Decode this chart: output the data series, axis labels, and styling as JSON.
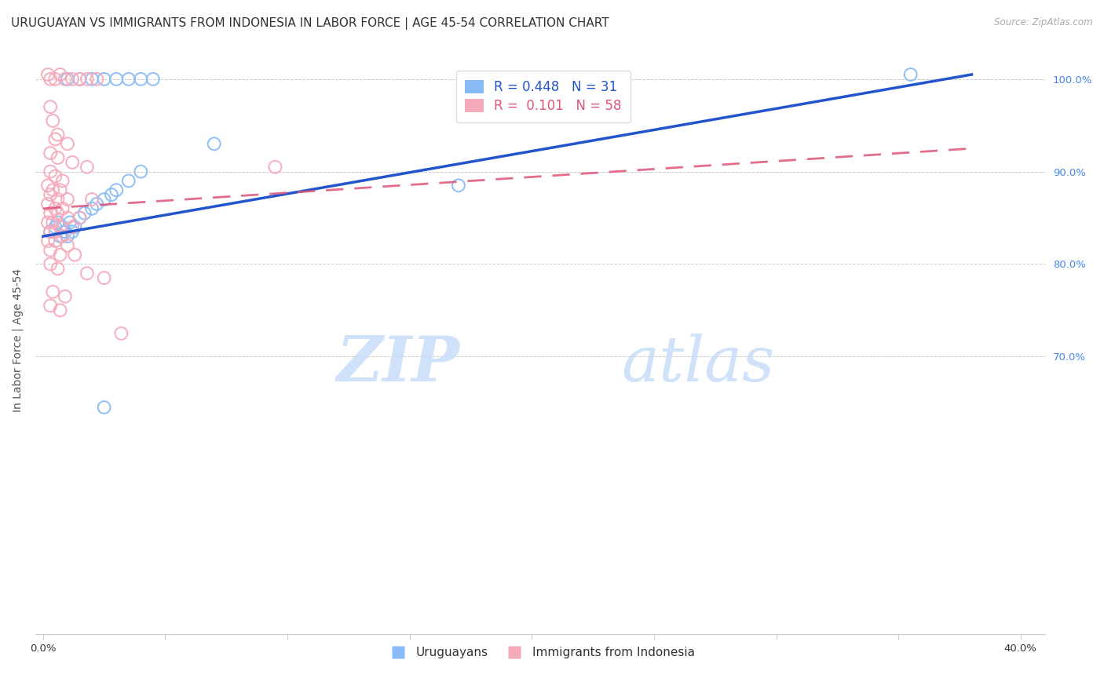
{
  "title": "URUGUAYAN VS IMMIGRANTS FROM INDONESIA IN LABOR FORCE | AGE 45-54 CORRELATION CHART",
  "source": "Source: ZipAtlas.com",
  "ylabel": "In Labor Force | Age 45-54",
  "x_tick_vals": [
    0.0,
    5.0,
    10.0,
    15.0,
    20.0,
    25.0,
    30.0,
    35.0,
    40.0
  ],
  "y_tick_vals": [
    70.0,
    80.0,
    90.0,
    100.0
  ],
  "xlim": [
    -0.3,
    41.0
  ],
  "ylim": [
    40.0,
    103.5
  ],
  "legend_label_blue": "Uruguayans",
  "legend_label_pink": "Immigrants from Indonesia",
  "R_blue": "0.448",
  "N_blue": "31",
  "R_pink": "0.101",
  "N_pink": "58",
  "blue_color": "#88bbf8",
  "pink_color": "#f5aabb",
  "blue_line_color": "#2255cc",
  "pink_line_color": "#dd5577",
  "blue_scatter": [
    [
      0.3,
      83.5
    ],
    [
      0.5,
      84.0
    ],
    [
      0.6,
      84.5
    ],
    [
      0.7,
      83.0
    ],
    [
      0.8,
      84.0
    ],
    [
      0.9,
      83.5
    ],
    [
      1.0,
      83.0
    ],
    [
      1.1,
      84.5
    ],
    [
      1.2,
      83.5
    ],
    [
      1.3,
      84.0
    ],
    [
      1.5,
      85.0
    ],
    [
      1.7,
      85.5
    ],
    [
      2.0,
      86.0
    ],
    [
      2.2,
      86.5
    ],
    [
      2.5,
      87.0
    ],
    [
      2.8,
      87.5
    ],
    [
      3.0,
      88.0
    ],
    [
      3.5,
      89.0
    ],
    [
      4.0,
      90.0
    ],
    [
      1.0,
      100.0
    ],
    [
      1.5,
      100.0
    ],
    [
      2.0,
      100.0
    ],
    [
      2.5,
      100.0
    ],
    [
      3.0,
      100.0
    ],
    [
      3.5,
      100.0
    ],
    [
      4.0,
      100.0
    ],
    [
      4.5,
      100.0
    ],
    [
      7.0,
      93.0
    ],
    [
      17.0,
      88.5
    ],
    [
      35.5,
      100.5
    ],
    [
      2.5,
      64.5
    ]
  ],
  "pink_scatter": [
    [
      0.2,
      100.5
    ],
    [
      0.3,
      100.0
    ],
    [
      0.5,
      100.0
    ],
    [
      0.7,
      100.5
    ],
    [
      0.9,
      100.0
    ],
    [
      1.2,
      100.0
    ],
    [
      1.5,
      100.0
    ],
    [
      1.8,
      100.0
    ],
    [
      2.2,
      100.0
    ],
    [
      0.3,
      97.0
    ],
    [
      0.4,
      95.5
    ],
    [
      0.6,
      94.0
    ],
    [
      0.5,
      93.5
    ],
    [
      1.0,
      93.0
    ],
    [
      0.3,
      92.0
    ],
    [
      0.6,
      91.5
    ],
    [
      1.2,
      91.0
    ],
    [
      1.8,
      90.5
    ],
    [
      0.3,
      90.0
    ],
    [
      0.5,
      89.5
    ],
    [
      0.8,
      89.0
    ],
    [
      0.2,
      88.5
    ],
    [
      0.4,
      88.0
    ],
    [
      0.7,
      88.0
    ],
    [
      0.3,
      87.5
    ],
    [
      0.6,
      87.0
    ],
    [
      1.0,
      87.0
    ],
    [
      2.0,
      87.0
    ],
    [
      0.2,
      86.5
    ],
    [
      0.5,
      86.0
    ],
    [
      0.8,
      86.0
    ],
    [
      0.3,
      85.5
    ],
    [
      0.6,
      85.5
    ],
    [
      1.0,
      85.0
    ],
    [
      1.5,
      85.0
    ],
    [
      0.2,
      84.5
    ],
    [
      0.4,
      84.5
    ],
    [
      0.7,
      84.0
    ],
    [
      1.2,
      84.0
    ],
    [
      0.3,
      83.5
    ],
    [
      0.5,
      83.5
    ],
    [
      0.8,
      83.0
    ],
    [
      0.2,
      82.5
    ],
    [
      0.5,
      82.5
    ],
    [
      1.0,
      82.0
    ],
    [
      0.3,
      81.5
    ],
    [
      0.7,
      81.0
    ],
    [
      1.3,
      81.0
    ],
    [
      0.3,
      80.0
    ],
    [
      0.6,
      79.5
    ],
    [
      1.8,
      79.0
    ],
    [
      2.5,
      78.5
    ],
    [
      0.4,
      77.0
    ],
    [
      0.9,
      76.5
    ],
    [
      0.3,
      75.5
    ],
    [
      0.7,
      75.0
    ],
    [
      9.5,
      90.5
    ],
    [
      3.2,
      72.5
    ]
  ],
  "watermark_zip": "ZIP",
  "watermark_atlas": "atlas",
  "grid_color": "#cccccc",
  "bg_color": "#ffffff",
  "title_fontsize": 11,
  "axis_label_fontsize": 10,
  "tick_fontsize": 9.5,
  "right_tick_color": "#4488ee"
}
